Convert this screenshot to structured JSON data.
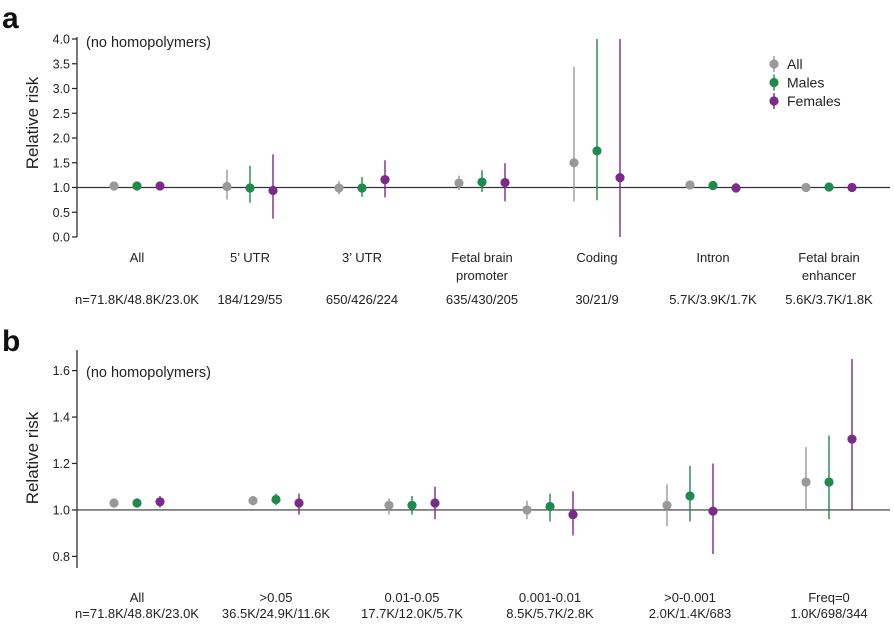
{
  "colors": {
    "all": "#999999",
    "males": "#1e8a4c",
    "females": "#7a2a88"
  },
  "chart_data": [
    {
      "panel": "a",
      "type": "scatter",
      "note": "(no homopolymers)",
      "ylabel": "Relative risk",
      "ylim": [
        0,
        4
      ],
      "yticks": [
        0.0,
        0.5,
        1.0,
        1.5,
        2.0,
        2.5,
        3.0,
        3.5,
        4.0
      ],
      "ytick_labels": [
        "0.0",
        "0.5",
        "1.0",
        "1.5",
        "2.0",
        "2.5",
        "3.0",
        "3.5",
        "4.0"
      ],
      "reference_line": 1.0,
      "legend": [
        "All",
        "Males",
        "Females"
      ],
      "legend_position": "top-right",
      "series_keys": [
        "all",
        "males",
        "females"
      ],
      "categories": [
        {
          "label": [
            "All"
          ],
          "count": "n=71.8K/48.8K/23.0K",
          "points": [
            {
              "y": 1.03,
              "lo": 0.99,
              "hi": 1.07
            },
            {
              "y": 1.03,
              "lo": 0.99,
              "hi": 1.07
            },
            {
              "y": 1.03,
              "lo": 0.98,
              "hi": 1.09
            }
          ]
        },
        {
          "label": [
            "5’ UTR"
          ],
          "count": "184/129/55",
          "points": [
            {
              "y": 1.02,
              "lo": 0.76,
              "hi": 1.36
            },
            {
              "y": 0.99,
              "lo": 0.69,
              "hi": 1.44
            },
            {
              "y": 0.94,
              "lo": 0.37,
              "hi": 1.67
            }
          ]
        },
        {
          "label": [
            "3’ UTR"
          ],
          "count": "650/426/224",
          "points": [
            {
              "y": 0.99,
              "lo": 0.86,
              "hi": 1.13
            },
            {
              "y": 0.99,
              "lo": 0.81,
              "hi": 1.21
            },
            {
              "y": 1.16,
              "lo": 0.8,
              "hi": 1.55
            }
          ]
        },
        {
          "label": [
            "Fetal brain",
            "promoter"
          ],
          "count": "635/430/205",
          "points": [
            {
              "y": 1.09,
              "lo": 0.95,
              "hi": 1.24
            },
            {
              "y": 1.11,
              "lo": 0.91,
              "hi": 1.35
            },
            {
              "y": 1.1,
              "lo": 0.72,
              "hi": 1.49
            }
          ]
        },
        {
          "label": [
            "Coding"
          ],
          "count": "30/21/9",
          "points": [
            {
              "y": 1.5,
              "lo": 0.72,
              "hi": 3.44
            },
            {
              "y": 1.74,
              "lo": 0.74,
              "hi": 4.0
            },
            {
              "y": 1.2,
              "lo": 0.0,
              "hi": 4.0
            }
          ]
        },
        {
          "label": [
            "Intron"
          ],
          "count": "5.7K/3.9K/1.7K",
          "points": [
            {
              "y": 1.05,
              "lo": 1.0,
              "hi": 1.1
            },
            {
              "y": 1.04,
              "lo": 0.98,
              "hi": 1.1
            },
            {
              "y": 0.99,
              "lo": 0.91,
              "hi": 1.09
            }
          ]
        },
        {
          "label": [
            "Fetal brain",
            "enhancer"
          ],
          "count": "5.6K/3.7K/1.8K",
          "points": [
            {
              "y": 1.0,
              "lo": 0.96,
              "hi": 1.04
            },
            {
              "y": 1.01,
              "lo": 0.95,
              "hi": 1.07
            },
            {
              "y": 1.0,
              "lo": 0.91,
              "hi": 1.09
            }
          ]
        }
      ]
    },
    {
      "panel": "b",
      "type": "scatter",
      "note": "(no homopolymers)",
      "ylabel": "Relative risk",
      "ylim": [
        0.75,
        1.68
      ],
      "yticks": [
        0.8,
        1.0,
        1.2,
        1.4,
        1.6
      ],
      "ytick_labels": [
        "0.8",
        "1.0",
        "1.2",
        "1.4",
        "1.6"
      ],
      "reference_line": 1.0,
      "series_keys": [
        "all",
        "males",
        "females"
      ],
      "categories": [
        {
          "label": [
            "All"
          ],
          "count": "n=71.8K/48.8K/23.0K",
          "points": [
            {
              "y": 1.03,
              "lo": 1.01,
              "hi": 1.05
            },
            {
              "y": 1.03,
              "lo": 1.01,
              "hi": 1.05
            },
            {
              "y": 1.035,
              "lo": 1.01,
              "hi": 1.06
            }
          ]
        },
        {
          "label": [
            ">0.05"
          ],
          "count": "36.5K/24.9K/11.6K",
          "points": [
            {
              "y": 1.04,
              "lo": 1.02,
              "hi": 1.06
            },
            {
              "y": 1.045,
              "lo": 1.02,
              "hi": 1.07
            },
            {
              "y": 1.03,
              "lo": 0.98,
              "hi": 1.07
            }
          ]
        },
        {
          "label": [
            "0.01-0.05"
          ],
          "count": "17.7K/12.0K/5.7K",
          "points": [
            {
              "y": 1.02,
              "lo": 0.98,
              "hi": 1.05
            },
            {
              "y": 1.02,
              "lo": 0.98,
              "hi": 1.06
            },
            {
              "y": 1.03,
              "lo": 0.96,
              "hi": 1.1
            }
          ]
        },
        {
          "label": [
            "0.001-0.01"
          ],
          "count": "8.5K/5.7K/2.8K",
          "points": [
            {
              "y": 1.0,
              "lo": 0.96,
              "hi": 1.04
            },
            {
              "y": 1.015,
              "lo": 0.95,
              "hi": 1.07
            },
            {
              "y": 0.98,
              "lo": 0.89,
              "hi": 1.08
            }
          ]
        },
        {
          "label": [
            ">0-0.001"
          ],
          "count": "2.0K/1.4K/683",
          "points": [
            {
              "y": 1.02,
              "lo": 0.93,
              "hi": 1.11
            },
            {
              "y": 1.06,
              "lo": 0.95,
              "hi": 1.19
            },
            {
              "y": 0.995,
              "lo": 0.81,
              "hi": 1.2
            }
          ]
        },
        {
          "label": [
            "Freq=0"
          ],
          "count": "1.0K/698/344",
          "points": [
            {
              "y": 1.12,
              "lo": 1.0,
              "hi": 1.27
            },
            {
              "y": 1.12,
              "lo": 0.96,
              "hi": 1.32
            },
            {
              "y": 1.305,
              "lo": 1.0,
              "hi": 1.65
            }
          ]
        }
      ]
    }
  ]
}
